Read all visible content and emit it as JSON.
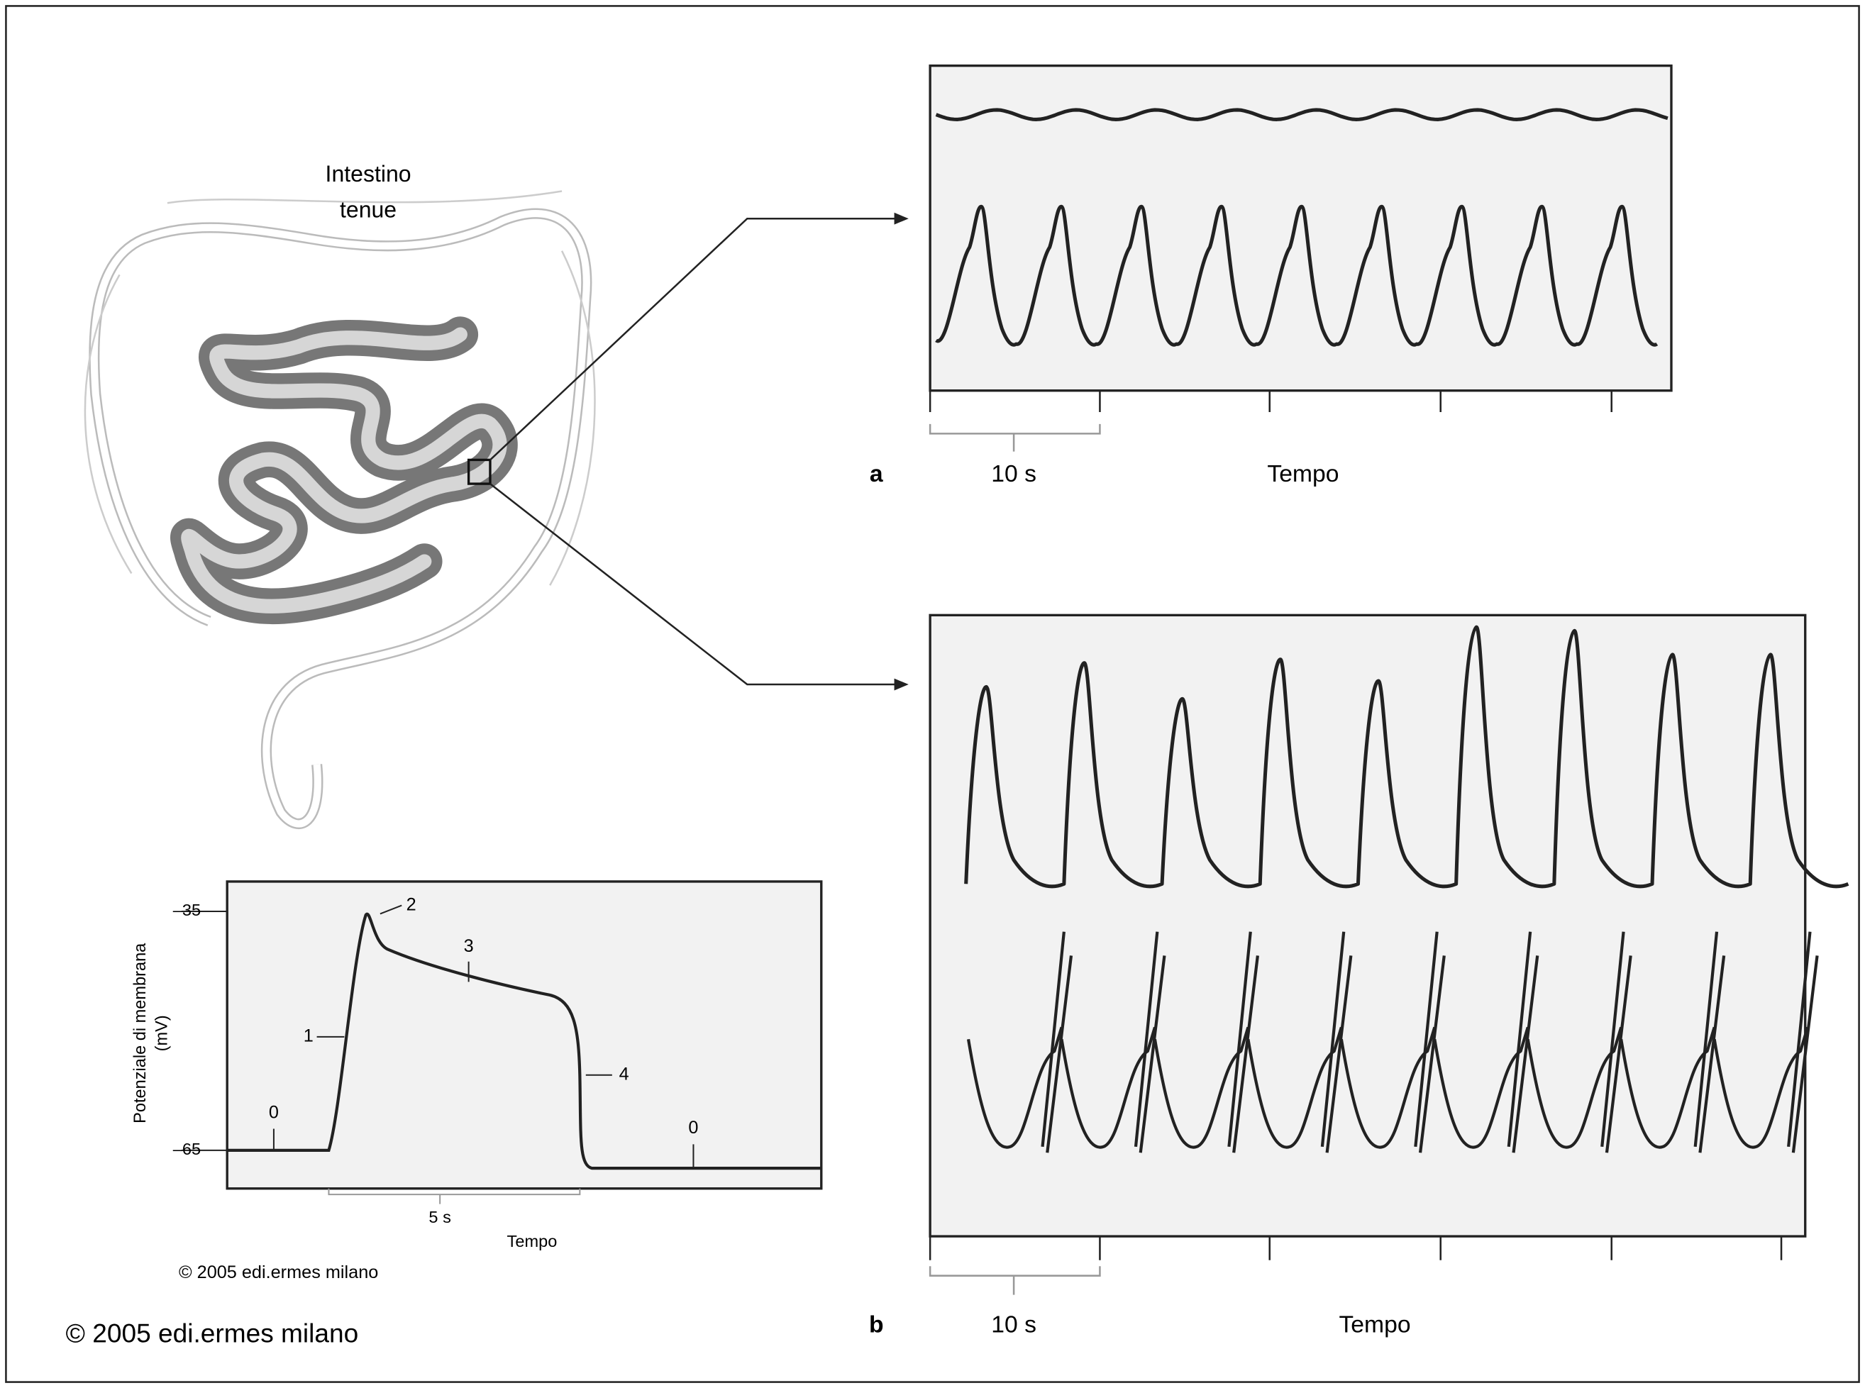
{
  "intestine": {
    "label_line1": "Intestino",
    "label_line2": "tenue"
  },
  "panel_a": {
    "label": "a",
    "scale": "10 s",
    "x_axis": "Tempo"
  },
  "panel_b": {
    "label": "b",
    "scale": "10 s",
    "x_axis": "Tempo"
  },
  "inset": {
    "y_axis_title_line1": "Potenziale di membrana",
    "y_axis_title_line2": "(mV)",
    "y_ticks": [
      "–35",
      "–65"
    ],
    "phase_labels": [
      "0",
      "1",
      "2",
      "3",
      "4",
      "0"
    ],
    "scale": "5 s",
    "x_axis": "Tempo",
    "copyright": "© 2005 edi.ermes milano"
  },
  "copyright": "© 2005 edi.ermes milano"
}
